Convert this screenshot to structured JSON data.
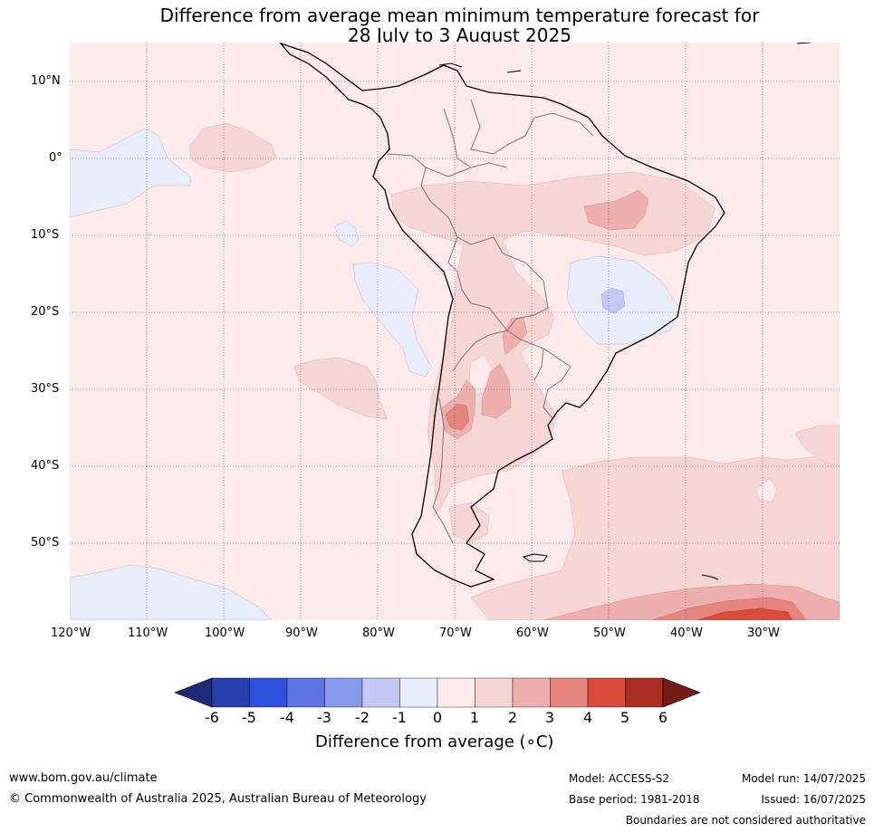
{
  "title": {
    "line1": "Difference from average mean minimum temperature forecast for",
    "line2": "28 July to 3 August 2025"
  },
  "map": {
    "region": "South America",
    "latitude_labels": [
      "10°N",
      "0°",
      "10°S",
      "20°S",
      "30°S",
      "40°S",
      "50°S"
    ],
    "longitude_labels": [
      "120°W",
      "110°W",
      "100°W",
      "90°W",
      "80°W",
      "70°W",
      "60°W",
      "50°W",
      "40°W",
      "30°W"
    ],
    "gridlines": true,
    "colors": {
      "background_anomaly_0_1": "#fcebea",
      "anomaly_1_2": "#f6d6d4",
      "anomaly_2_3": "#edafad",
      "anomaly_3_4": "#e6847e",
      "anomaly_4_5": "#da4b3c",
      "anomaly_neg1_0": "#e9ecfa",
      "anomaly_neg2_neg1": "#c3c9f4",
      "coastline": "#000000",
      "borders": "#7a7a7a"
    }
  },
  "colorbar": {
    "title": "Difference from average (∘C)",
    "tick_labels": [
      "-6",
      "-5",
      "-4",
      "-3",
      "-2",
      "-1",
      "0",
      "1",
      "2",
      "3",
      "4",
      "5",
      "6"
    ],
    "colors": [
      "#1c2a78",
      "#283fb0",
      "#2f51e0",
      "#5e73e4",
      "#8799ea",
      "#c3c9f4",
      "#e9ecfa",
      "#fcebea",
      "#f6d6d4",
      "#edafad",
      "#e6847e",
      "#da4b3c",
      "#aa2c22",
      "#731c18"
    ]
  },
  "footer": {
    "website": "www.bom.gov.au/climate",
    "copyright": "© Commonwealth of Australia 2025, Australian Bureau of Meteorology",
    "model": "Model: ACCESS-S2",
    "base_period": "Base period: 1981-2018",
    "model_run": "Model run: 14/07/2025",
    "issued": "Issued: 16/07/2025",
    "disclaimer": "Boundaries are not considered authoritative"
  }
}
